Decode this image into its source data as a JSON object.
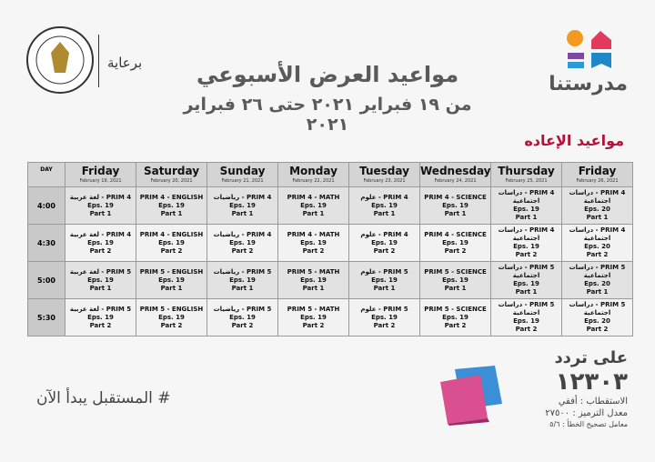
{
  "header": {
    "title": "مواعيد العرض الأسبوعي",
    "subtitle": "من ١٩ فبراير ٢٠٢١ حتى ٢٦ فبراير ٢٠٢١",
    "sponsor": "برعاية",
    "brand": "مدرستنا"
  },
  "section": "مواعيد الإعاده",
  "table": {
    "day_label": "DAY",
    "columns": [
      {
        "day": "Friday",
        "date": "February 19, 2021"
      },
      {
        "day": "Saturday",
        "date": "February 20, 2021"
      },
      {
        "day": "Sunday",
        "date": "February 21, 2021"
      },
      {
        "day": "Monday",
        "date": "February 22, 2021"
      },
      {
        "day": "Tuesday",
        "date": "February 23, 2021"
      },
      {
        "day": "Wednesday",
        "date": "February 24, 2021"
      },
      {
        "day": "Thursday",
        "date": "February 25, 2021"
      },
      {
        "day": "Friday",
        "date": "February 26, 2021"
      }
    ],
    "rows": [
      {
        "time": "4:00",
        "cells": [
          [
            "PRIM 4 - لغة عربية",
            "Eps. 19",
            "Part 1"
          ],
          [
            "PRIM 4 - ENGLISH",
            "Eps. 19",
            "Part 1"
          ],
          [
            "PRIM 4 - رياضيات",
            "Eps. 19",
            "Part 1"
          ],
          [
            "PRIM 4 - MATH",
            "Eps. 19",
            "Part 1"
          ],
          [
            "PRIM 4 - علوم",
            "Eps. 19",
            "Part 1"
          ],
          [
            "PRIM 4 - SCIENCE",
            "Eps. 19",
            "Part 1"
          ],
          [
            "PRIM 4 - دراسات",
            "اجتماعية",
            "Eps. 19",
            "Part 1"
          ],
          [
            "PRIM 4 - دراسات",
            "اجتماعية",
            "Eps. 20",
            "Part 1"
          ]
        ]
      },
      {
        "time": "4:30",
        "cells": [
          [
            "PRIM 4 - لغة عربية",
            "Eps. 19",
            "Part 2"
          ],
          [
            "PRIM 4 - ENGLISH",
            "Eps. 19",
            "Part 2"
          ],
          [
            "PRIM 4 - رياضيات",
            "Eps. 19",
            "Part 2"
          ],
          [
            "PRIM 4 - MATH",
            "Eps. 19",
            "Part 2"
          ],
          [
            "PRIM 4 - علوم",
            "Eps. 19",
            "Part 2"
          ],
          [
            "PRIM 4 - SCIENCE",
            "Eps. 19",
            "Part 2"
          ],
          [
            "PRIM 4 - دراسات",
            "اجتماعية",
            "Eps. 19",
            "Part 2"
          ],
          [
            "PRIM 4 - دراسات",
            "اجتماعية",
            "Eps. 20",
            "Part 2"
          ]
        ]
      },
      {
        "time": "5:00",
        "cells": [
          [
            "PRIM 5 - لغة عربية",
            "Eps. 19",
            "Part 1"
          ],
          [
            "PRIM 5 - ENGLISH",
            "Eps. 19",
            "Part 1"
          ],
          [
            "PRIM 5 - رياضيات",
            "Eps. 19",
            "Part 1"
          ],
          [
            "PRIM 5 - MATH",
            "Eps. 19",
            "Part 1"
          ],
          [
            "PRIM 5 - علوم",
            "Eps. 19",
            "Part 1"
          ],
          [
            "PRIM 5 - SCIENCE",
            "Eps. 19",
            "Part 1"
          ],
          [
            "PRIM 5 - دراسات",
            "اجتماعية",
            "Eps. 19",
            "Part 1"
          ],
          [
            "PRIM 5 - دراسات",
            "اجتماعية",
            "Eps. 20",
            "Part 1"
          ]
        ]
      },
      {
        "time": "5:30",
        "cells": [
          [
            "PRIM 5 - لغة عربية",
            "Eps. 19",
            "Part 2"
          ],
          [
            "PRIM 5 - ENGLISH",
            "Eps. 19",
            "Part 2"
          ],
          [
            "PRIM 5 - رياضيات",
            "Eps. 19",
            "Part 2"
          ],
          [
            "PRIM 5 - MATH",
            "Eps. 19",
            "Part 2"
          ],
          [
            "PRIM 5 - علوم",
            "Eps. 19",
            "Part 2"
          ],
          [
            "PRIM 5 - SCIENCE",
            "Eps. 19",
            "Part 2"
          ],
          [
            "PRIM 5 - دراسات",
            "اجتماعية",
            "Eps. 19",
            "Part 2"
          ],
          [
            "PRIM 5 - دراسات",
            "اجتماعية",
            "Eps. 20",
            "Part 2"
          ]
        ]
      }
    ]
  },
  "footer": {
    "hashtag": "# المستقبل يبدأ الآن",
    "frequency_label": "على تردد",
    "frequency": "١٢٣٠٣",
    "polarization": "الاستقطاب : أفقي",
    "symbol_rate": "معدل الترميز : ٢٧٥٠٠",
    "fec": "معامل تصحيح الخطأ : ٥/٦"
  }
}
